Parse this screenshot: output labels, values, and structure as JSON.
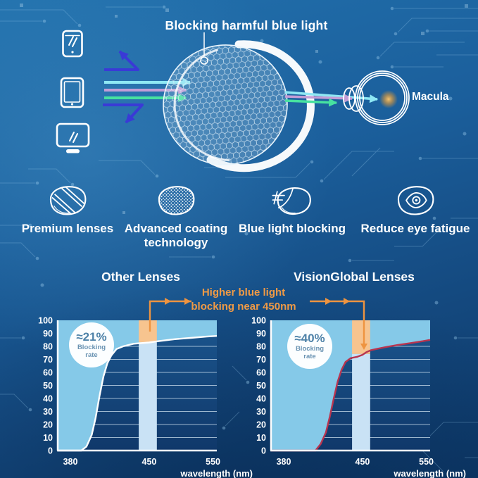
{
  "colors": {
    "background_top": "#2271ad",
    "background_bottom": "#0c3766",
    "accent_orange": "#ee9440",
    "ray_cyan": "#8fe8f4",
    "ray_purple": "#c49dd6",
    "ray_green": "#47e2a0",
    "reflect_blue": "#3a3ad6",
    "chart_area_fill": "#85c9e8",
    "band_blue": "#c9e2f5",
    "band_orange": "#f7c48f",
    "plot_bg_top": "#1b568e",
    "plot_bg_bottom": "#10386a",
    "macula_glow": "#f5a02e"
  },
  "hero": {
    "title": "Blocking harmful blue light",
    "macula_label": "Macula",
    "device_icons": [
      "smartphone-icon",
      "tablet-icon",
      "monitor-icon"
    ]
  },
  "features": [
    {
      "icon": "premium-lens-icon",
      "label": "Premium lenses"
    },
    {
      "icon": "coating-technology-icon",
      "label": "Advanced coating technology"
    },
    {
      "icon": "blue-light-blocking-icon",
      "label": "Blue light blocking"
    },
    {
      "icon": "reduce-eye-fatigue-icon",
      "label": "Reduce eye fatigue"
    }
  ],
  "comparison": {
    "annotation_lines": [
      "Higher blue light",
      "blocking near 450nm"
    ]
  },
  "chart_data": [
    {
      "type": "area",
      "title": "Other Lenses",
      "xlabel": "wavelength (nm)",
      "ylabel": "",
      "xlim": [
        380,
        556
      ],
      "ylim": [
        0,
        100
      ],
      "x_ticks": [
        380,
        450,
        550
      ],
      "y_ticks": [
        0,
        10,
        20,
        30,
        40,
        50,
        60,
        70,
        80,
        90,
        100
      ],
      "x_axis_anchors": [
        [
          380,
          0
        ],
        [
          450,
          0.575
        ],
        [
          556,
          1
        ]
      ],
      "grid": "horizontal",
      "legend": "none",
      "highlight_band_nm": [
        442,
        462
      ],
      "badge": {
        "value": "≈21%",
        "label": "Blocking rate"
      },
      "series": [
        {
          "name": "blocking rate (%)",
          "color": "#ffffff",
          "points": [
            [
              380,
              0
            ],
            [
              398,
              0
            ],
            [
              402,
              3
            ],
            [
              406,
              12
            ],
            [
              409,
              25
            ],
            [
              412,
              42
            ],
            [
              415,
              57
            ],
            [
              418,
              67
            ],
            [
              421,
              73
            ],
            [
              425,
              78
            ],
            [
              430,
              80
            ],
            [
              438,
              82
            ],
            [
              450,
              83
            ],
            [
              465,
              84
            ],
            [
              490,
              85.5
            ],
            [
              515,
              86.5
            ],
            [
              540,
              87.5
            ],
            [
              556,
              88
            ]
          ]
        }
      ]
    },
    {
      "type": "area",
      "title": "VisionGlobal Lenses",
      "xlabel": "wavelength (nm)",
      "ylabel": "",
      "xlim": [
        380,
        556
      ],
      "ylim": [
        0,
        100
      ],
      "x_ticks": [
        380,
        450,
        550
      ],
      "y_ticks": [
        0,
        10,
        20,
        30,
        40,
        50,
        60,
        70,
        80,
        90,
        100
      ],
      "x_axis_anchors": [
        [
          380,
          0
        ],
        [
          450,
          0.575
        ],
        [
          556,
          1
        ]
      ],
      "grid": "horizontal",
      "legend": "none",
      "highlight_band_nm": [
        442,
        462
      ],
      "badge": {
        "value": "≈40%",
        "label": "Blocking rate"
      },
      "series": [
        {
          "name": "blocking rate (%)",
          "color": "#b8344f",
          "points": [
            [
              380,
              0
            ],
            [
              414,
              0
            ],
            [
              418,
              5
            ],
            [
              422,
              14
            ],
            [
              425,
              26
            ],
            [
              428,
              40
            ],
            [
              431,
              53
            ],
            [
              434,
              62
            ],
            [
              437,
              68
            ],
            [
              441,
              71
            ],
            [
              446,
              72
            ],
            [
              450,
              73.5
            ],
            [
              456,
              75.5
            ],
            [
              463,
              77
            ],
            [
              472,
              78
            ],
            [
              487,
              79.5
            ],
            [
              505,
              81
            ],
            [
              525,
              82.5
            ],
            [
              545,
              84
            ],
            [
              556,
              85
            ]
          ]
        }
      ]
    }
  ]
}
